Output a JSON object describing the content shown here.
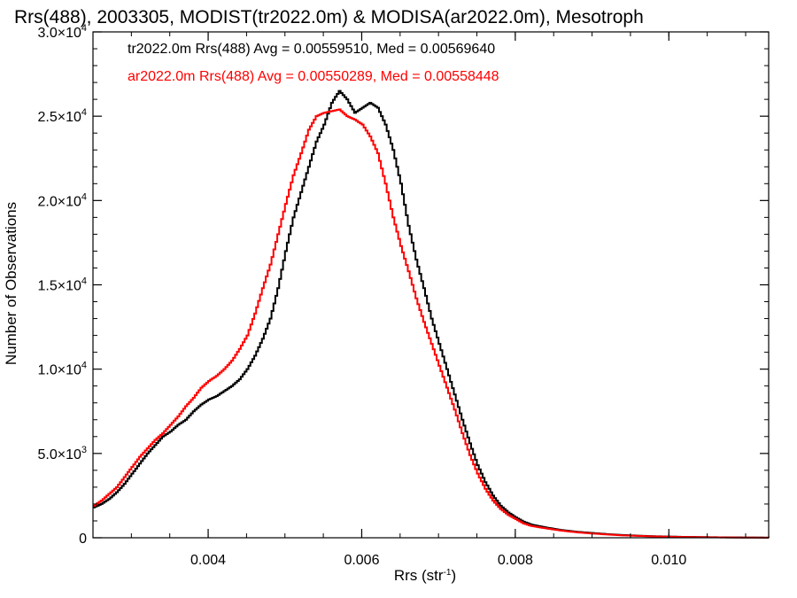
{
  "chart_data": {
    "type": "line",
    "title": "Rrs(488), 2003305, MODIST(tr2022.0m) & MODISA(ar2022.0m), Mesotroph",
    "xlabel": "Rrs (str",
    "xlabel_sup": "-1",
    "xlabel_suffix": ")",
    "ylabel": "Number of Observations",
    "xlim": [
      0.0025,
      0.0113
    ],
    "ylim": [
      0,
      30000
    ],
    "x_ticks": [
      {
        "value": 0.004,
        "label": "0.004"
      },
      {
        "value": 0.006,
        "label": "0.006"
      },
      {
        "value": 0.008,
        "label": "0.008"
      },
      {
        "value": 0.01,
        "label": "0.010"
      }
    ],
    "y_ticks": [
      {
        "value": 0,
        "mant": "0",
        "exp": ""
      },
      {
        "value": 5000,
        "mant": "5.0×10",
        "exp": "3"
      },
      {
        "value": 10000,
        "mant": "1.0×10",
        "exp": "4"
      },
      {
        "value": 15000,
        "mant": "1.5×10",
        "exp": "4"
      },
      {
        "value": 20000,
        "mant": "2.0×10",
        "exp": "4"
      },
      {
        "value": 25000,
        "mant": "2.5×10",
        "exp": "4"
      },
      {
        "value": 30000,
        "mant": "3.0×10",
        "exp": "4"
      }
    ],
    "grid": false,
    "legend_placement": "top-left",
    "series": [
      {
        "name": "tr2022.0m Rrs(488) Avg = 0.00559510, Med = 0.00569640",
        "color": "#000000",
        "x": [
          0.0025,
          0.0026,
          0.0027,
          0.0028,
          0.0029,
          0.003,
          0.0031,
          0.0032,
          0.0033,
          0.0034,
          0.0035,
          0.0036,
          0.0037,
          0.0038,
          0.0039,
          0.004,
          0.0041,
          0.0042,
          0.0043,
          0.0044,
          0.0045,
          0.0046,
          0.0047,
          0.0048,
          0.0049,
          0.005,
          0.0051,
          0.0052,
          0.0053,
          0.0054,
          0.0055,
          0.0056,
          0.0057,
          0.0058,
          0.0059,
          0.006,
          0.0061,
          0.0062,
          0.0063,
          0.0064,
          0.0065,
          0.0066,
          0.0067,
          0.0068,
          0.0069,
          0.007,
          0.0071,
          0.0072,
          0.0073,
          0.0074,
          0.0075,
          0.0076,
          0.0077,
          0.0078,
          0.0079,
          0.008,
          0.0081,
          0.0082,
          0.0084,
          0.0086,
          0.0088,
          0.009,
          0.0092,
          0.0094,
          0.0096,
          0.0098,
          0.01,
          0.0102,
          0.0104,
          0.0106,
          0.0108,
          0.011,
          0.0112,
          0.0113
        ],
        "y": [
          1800,
          2000,
          2300,
          2700,
          3200,
          3800,
          4400,
          5000,
          5500,
          6000,
          6300,
          6700,
          7000,
          7500,
          7900,
          8200,
          8400,
          8700,
          9000,
          9400,
          10000,
          10800,
          11800,
          13000,
          14800,
          17000,
          19000,
          20500,
          22000,
          23500,
          24500,
          25800,
          26500,
          26000,
          25200,
          25500,
          25800,
          25500,
          24500,
          23000,
          21000,
          18500,
          16500,
          14800,
          13000,
          11500,
          10000,
          8500,
          7000,
          5600,
          4300,
          3300,
          2500,
          1900,
          1500,
          1200,
          950,
          780,
          600,
          450,
          350,
          280,
          210,
          160,
          120,
          90,
          70,
          50,
          40,
          30,
          20,
          15,
          10,
          5
        ]
      },
      {
        "name": "ar2022.0m Rrs(488) Avg = 0.00550289, Med = 0.00558448",
        "color": "#ff0000",
        "x": [
          0.0025,
          0.0026,
          0.0027,
          0.0028,
          0.0029,
          0.003,
          0.0031,
          0.0032,
          0.0033,
          0.0034,
          0.0035,
          0.0036,
          0.0037,
          0.0038,
          0.0039,
          0.004,
          0.0041,
          0.0042,
          0.0043,
          0.0044,
          0.0045,
          0.0046,
          0.0047,
          0.0048,
          0.0049,
          0.005,
          0.0051,
          0.0052,
          0.0053,
          0.0054,
          0.0055,
          0.0056,
          0.0057,
          0.0058,
          0.0059,
          0.006,
          0.0061,
          0.0062,
          0.0063,
          0.0064,
          0.0065,
          0.0066,
          0.0067,
          0.0068,
          0.0069,
          0.007,
          0.0071,
          0.0072,
          0.0073,
          0.0074,
          0.0075,
          0.0076,
          0.0077,
          0.0078,
          0.0079,
          0.008,
          0.0081,
          0.0082,
          0.0084,
          0.0086,
          0.0088,
          0.009,
          0.0092,
          0.0094,
          0.0096,
          0.0098,
          0.01,
          0.0102,
          0.0104,
          0.0106,
          0.0108,
          0.011,
          0.0112,
          0.0113
        ],
        "y": [
          1900,
          2200,
          2600,
          3000,
          3600,
          4200,
          4800,
          5300,
          5800,
          6200,
          6700,
          7200,
          7800,
          8300,
          8900,
          9300,
          9600,
          10000,
          10500,
          11200,
          12000,
          13300,
          14800,
          16200,
          18000,
          19800,
          21500,
          22800,
          24200,
          25000,
          25200,
          25300,
          25400,
          25000,
          24800,
          24500,
          23800,
          22800,
          21000,
          19000,
          17300,
          15800,
          14200,
          12800,
          11500,
          10200,
          8900,
          7600,
          6200,
          4900,
          3800,
          2900,
          2200,
          1700,
          1350,
          1100,
          850,
          700,
          550,
          420,
          320,
          250,
          190,
          140,
          110,
          80,
          60,
          45,
          35,
          25,
          18,
          12,
          8,
          4
        ]
      }
    ]
  }
}
